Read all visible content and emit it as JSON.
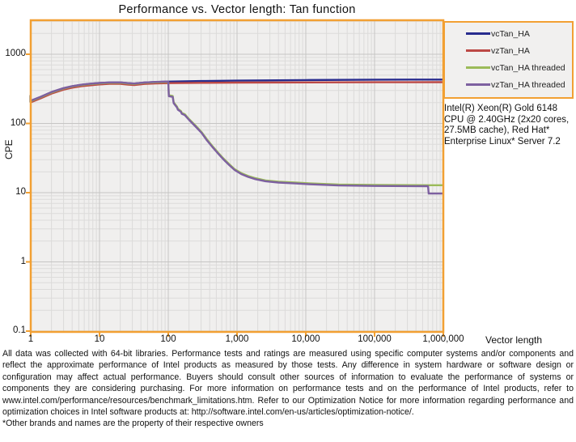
{
  "chart": {
    "title": "Performance vs. Vector length: Tan function",
    "x_axis_title": "Vector length",
    "y_axis_title": "CPE",
    "x_ticks": [
      "1",
      "10",
      "100",
      "1,000",
      "10,000",
      "100,000",
      "1,000,000"
    ],
    "y_ticks": [
      "1000",
      "100",
      "10",
      "1",
      "0.1"
    ]
  },
  "legend": {
    "items": [
      {
        "label": "vcTan_HA",
        "color": "#282c8e"
      },
      {
        "label": "vzTan_HA",
        "color": "#bc4845"
      },
      {
        "label": "vcTan_HA threaded",
        "color": "#9bbb59"
      },
      {
        "label": "vzTan_HA threaded",
        "color": "#7d60a0"
      }
    ]
  },
  "system_info": "Intel(R) Xeon(R) Gold 6148 CPU @ 2.40GHz (2x20 cores, 27.5MB cache), Red Hat* Enterprise Linux* Server 7.2",
  "disclaimer": "All data was collected with 64-bit libraries. Performance tests and ratings are measured using specific computer systems and/or components and reflect the approximate performance of Intel products as measured by those tests. Any difference in system hardware or software design or configuration may affect actual performance. Buyers should consult other sources of information to evaluate the performance of systems or components they are considering purchasing. For more information on performance tests and on the performance of Intel products, refer to www.intel.com/performance/resources/benchmark_limitations.htm.  Refer to our Optimization Notice for more information regarding performance and optimization choices in Intel software products at: http://software.intel.com/en-us/articles/optimization-notice/.",
  "footnote": "*Other brands and names are the property of their respective owners",
  "colors": {
    "frame_orange": "#f2a033",
    "plot_bg": "#f0efee",
    "grid_minor": "#dcdbda",
    "grid_major": "#c6c5c4",
    "start_marker": "#1a1a1a"
  },
  "chart_data": {
    "type": "line",
    "title": "Performance vs. Vector length: Tan function",
    "xlabel": "Vector length",
    "ylabel": "CPE",
    "x_scale": "log",
    "y_scale": "log",
    "xlim": [
      1,
      1000000
    ],
    "ylim": [
      0.1,
      3000
    ],
    "grid": true,
    "legend_position": "top-right",
    "series": [
      {
        "name": "vcTan_HA",
        "color": "#282c8e",
        "points": [
          [
            1,
            212
          ],
          [
            1.4,
            242
          ],
          [
            2,
            283
          ],
          [
            3,
            323
          ],
          [
            4,
            345
          ],
          [
            5.5,
            362
          ],
          [
            7,
            372
          ],
          [
            10,
            383
          ],
          [
            14,
            391
          ],
          [
            20,
            392
          ],
          [
            26,
            381
          ],
          [
            32,
            376
          ],
          [
            45,
            390
          ],
          [
            65,
            397
          ],
          [
            100,
            402
          ],
          [
            300,
            410
          ],
          [
            1000,
            416
          ],
          [
            10000,
            424
          ],
          [
            100000,
            429
          ],
          [
            1000000,
            431
          ]
        ]
      },
      {
        "name": "vzTan_HA",
        "color": "#bc4845",
        "points": [
          [
            1,
            202
          ],
          [
            1.4,
            231
          ],
          [
            2,
            270
          ],
          [
            3,
            308
          ],
          [
            4,
            329
          ],
          [
            5.5,
            346
          ],
          [
            7,
            355
          ],
          [
            10,
            366
          ],
          [
            14,
            373
          ],
          [
            20,
            374
          ],
          [
            26,
            364
          ],
          [
            32,
            359
          ],
          [
            45,
            372
          ],
          [
            65,
            379
          ],
          [
            100,
            382
          ],
          [
            300,
            387
          ],
          [
            1000,
            390
          ],
          [
            10000,
            392
          ],
          [
            100000,
            394
          ],
          [
            1000000,
            395
          ]
        ]
      },
      {
        "name": "vcTan_HA threaded",
        "color": "#9bbb59",
        "points": [
          [
            1,
            210
          ],
          [
            1.4,
            240
          ],
          [
            2,
            280
          ],
          [
            3,
            320
          ],
          [
            4,
            342
          ],
          [
            5.5,
            358
          ],
          [
            7,
            368
          ],
          [
            10,
            379
          ],
          [
            14,
            387
          ],
          [
            20,
            388
          ],
          [
            26,
            377
          ],
          [
            32,
            372
          ],
          [
            45,
            386
          ],
          [
            65,
            393
          ],
          [
            100,
            398
          ],
          [
            102,
            255
          ],
          [
            116,
            249
          ],
          [
            120,
            202
          ],
          [
            134,
            175
          ],
          [
            138,
            163
          ],
          [
            153,
            151
          ],
          [
            157,
            142
          ],
          [
            174,
            136
          ],
          [
            200,
            116
          ],
          [
            250,
            93
          ],
          [
            305,
            75
          ],
          [
            365,
            59
          ],
          [
            435,
            47.5
          ],
          [
            520,
            38.6
          ],
          [
            630,
            31.4
          ],
          [
            760,
            26.1
          ],
          [
            920,
            21.9
          ],
          [
            1150,
            19.2
          ],
          [
            1450,
            17.4
          ],
          [
            1850,
            16.2
          ],
          [
            2600,
            15.0
          ],
          [
            4000,
            14.4
          ],
          [
            7000,
            14.0
          ],
          [
            12000,
            13.6
          ],
          [
            30000,
            13.1
          ],
          [
            100000,
            12.9
          ],
          [
            600000,
            12.8
          ],
          [
            1000000,
            12.8
          ]
        ]
      },
      {
        "name": "vzTan_HA threaded",
        "color": "#7d60a0",
        "points": [
          [
            1,
            213
          ],
          [
            1.4,
            243
          ],
          [
            2,
            284
          ],
          [
            3,
            324
          ],
          [
            4,
            346
          ],
          [
            5.5,
            363
          ],
          [
            7,
            373
          ],
          [
            10,
            384
          ],
          [
            14,
            392
          ],
          [
            20,
            393
          ],
          [
            26,
            382
          ],
          [
            32,
            377
          ],
          [
            45,
            391
          ],
          [
            65,
            398
          ],
          [
            100,
            403
          ],
          [
            102,
            248
          ],
          [
            116,
            242
          ],
          [
            120,
            196
          ],
          [
            134,
            170
          ],
          [
            138,
            158
          ],
          [
            153,
            147
          ],
          [
            157,
            138
          ],
          [
            174,
            132
          ],
          [
            200,
            113
          ],
          [
            250,
            90
          ],
          [
            305,
            73
          ],
          [
            365,
            57
          ],
          [
            435,
            46
          ],
          [
            520,
            37.5
          ],
          [
            630,
            30.5
          ],
          [
            760,
            25.3
          ],
          [
            920,
            21.3
          ],
          [
            1150,
            18.6
          ],
          [
            1450,
            16.9
          ],
          [
            1850,
            15.7
          ],
          [
            2600,
            14.6
          ],
          [
            4000,
            14.0
          ],
          [
            7000,
            13.6
          ],
          [
            12000,
            13.2
          ],
          [
            30000,
            12.7
          ],
          [
            100000,
            12.5
          ],
          [
            600000,
            12.4
          ],
          [
            612000,
            9.7
          ],
          [
            1000000,
            9.7
          ]
        ]
      }
    ],
    "annotations": {
      "start_marker_point": [
        1,
        230
      ]
    }
  }
}
